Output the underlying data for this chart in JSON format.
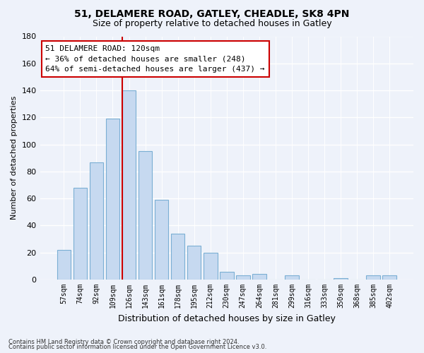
{
  "title": "51, DELAMERE ROAD, GATLEY, CHEADLE, SK8 4PN",
  "subtitle": "Size of property relative to detached houses in Gatley",
  "xlabel": "Distribution of detached houses by size in Gatley",
  "ylabel": "Number of detached properties",
  "bar_color": "#c6d9f0",
  "bar_edge_color": "#7bafd4",
  "categories": [
    "57sqm",
    "74sqm",
    "92sqm",
    "109sqm",
    "126sqm",
    "143sqm",
    "161sqm",
    "178sqm",
    "195sqm",
    "212sqm",
    "230sqm",
    "247sqm",
    "264sqm",
    "281sqm",
    "299sqm",
    "316sqm",
    "333sqm",
    "350sqm",
    "368sqm",
    "385sqm",
    "402sqm"
  ],
  "values": [
    22,
    68,
    87,
    119,
    140,
    95,
    59,
    34,
    25,
    20,
    6,
    3,
    4,
    0,
    3,
    0,
    0,
    1,
    0,
    3,
    3
  ],
  "ylim": [
    0,
    180
  ],
  "yticks": [
    0,
    20,
    40,
    60,
    80,
    100,
    120,
    140,
    160,
    180
  ],
  "vline_index": 4,
  "marker_label_line1": "51 DELAMERE ROAD: 120sqm",
  "marker_label_line2": "← 36% of detached houses are smaller (248)",
  "marker_label_line3": "64% of semi-detached houses are larger (437) →",
  "annotation_box_color": "#ffffff",
  "annotation_border_color": "#cc0000",
  "vline_color": "#cc0000",
  "footnote1": "Contains HM Land Registry data © Crown copyright and database right 2024.",
  "footnote2": "Contains public sector information licensed under the Open Government Licence v3.0.",
  "background_color": "#eef2fa"
}
